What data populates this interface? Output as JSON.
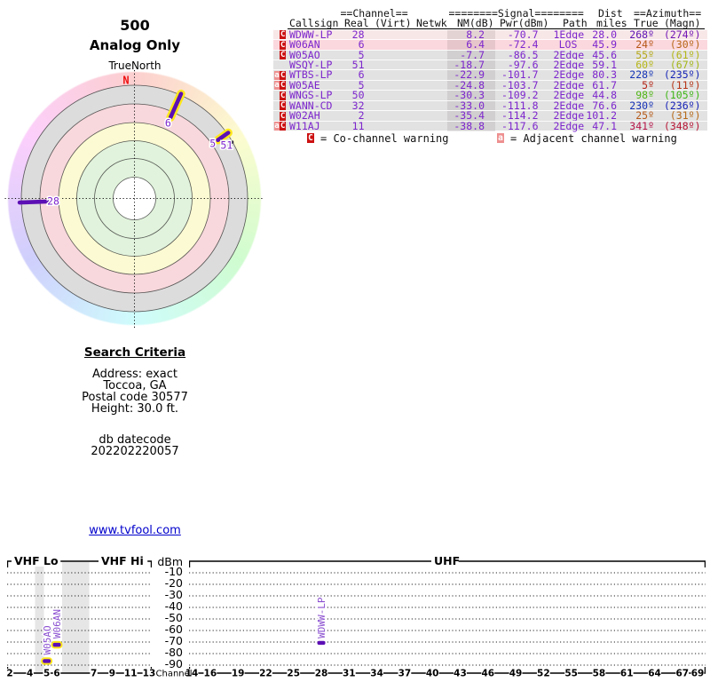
{
  "report": {
    "title": "500",
    "subtitle": "Analog Only",
    "compass_label": "TrueNorth",
    "north_label": "N"
  },
  "colors": {
    "station_purple": "#7d26cd",
    "marker_purple": "#5c0fb4",
    "marker_halo_yellow": "#ffe81a",
    "label_purple": "#8a4fd0",
    "co_badge_red": "#cc1111",
    "adj_badge_pink": "#ee9090",
    "north_red": "#ee1111",
    "link_blue": "#0000cc",
    "row_pink_light": "#f8e7e7",
    "row_pink": "#fbd8de",
    "row_gray": "#e2e2e2",
    "ring_green": "#e1f3dc",
    "ring_yellow": "#fbfad2",
    "ring_pink": "#f8d8dc",
    "ring_gray": "#dcdcdc"
  },
  "table": {
    "header_row1": {
      "channel": "==Channel==",
      "signal": "========Signal========",
      "dist": "Dist",
      "azimuth": "==Azimuth=="
    },
    "header_row2": {
      "callsign": "Callsign",
      "real": "Real",
      "virt": "(Virt)",
      "netwk": "Netwk",
      "nm": "NM(dB)",
      "pwr": "Pwr(dBm)",
      "path": "Path",
      "miles": "miles",
      "true": "True",
      "magn": "(Magn)"
    },
    "rows": [
      {
        "warn_adj": false,
        "warn_co": true,
        "callsign": "WDWW-LP",
        "real": "28",
        "virt": "",
        "netwk": "",
        "nm": "8.2",
        "pwr": "-70.7",
        "path": "1Edge",
        "miles": "28.0",
        "true_az": 268,
        "magn_az": 274,
        "shade": "pink_light"
      },
      {
        "warn_adj": false,
        "warn_co": true,
        "callsign": "W06AN",
        "real": "6",
        "virt": "",
        "netwk": "",
        "nm": "6.4",
        "pwr": "-72.4",
        "path": "LOS",
        "miles": "45.9",
        "true_az": 24,
        "magn_az": 30,
        "shade": "pink"
      },
      {
        "warn_adj": false,
        "warn_co": true,
        "callsign": "W05AO",
        "real": "5",
        "virt": "",
        "netwk": "",
        "nm": "-7.7",
        "pwr": "-86.5",
        "path": "2Edge",
        "miles": "45.6",
        "true_az": 55,
        "magn_az": 61,
        "shade": "gray"
      },
      {
        "warn_adj": false,
        "warn_co": false,
        "callsign": "WSQY-LP",
        "real": "51",
        "virt": "",
        "netwk": "",
        "nm": "-18.7",
        "pwr": "-97.6",
        "path": "2Edge",
        "miles": "59.1",
        "true_az": 60,
        "magn_az": 67,
        "shade": "gray"
      },
      {
        "warn_adj": true,
        "warn_co": true,
        "callsign": "WTBS-LP",
        "real": "6",
        "virt": "",
        "netwk": "",
        "nm": "-22.9",
        "pwr": "-101.7",
        "path": "2Edge",
        "miles": "80.3",
        "true_az": 228,
        "magn_az": 235,
        "shade": "gray"
      },
      {
        "warn_adj": true,
        "warn_co": true,
        "callsign": "W05AE",
        "real": "5",
        "virt": "",
        "netwk": "",
        "nm": "-24.8",
        "pwr": "-103.7",
        "path": "2Edge",
        "miles": "61.7",
        "true_az": 5,
        "magn_az": 11,
        "shade": "gray"
      },
      {
        "warn_adj": false,
        "warn_co": true,
        "callsign": "WNGS-LP",
        "real": "50",
        "virt": "",
        "netwk": "",
        "nm": "-30.3",
        "pwr": "-109.2",
        "path": "2Edge",
        "miles": "44.8",
        "true_az": 98,
        "magn_az": 105,
        "shade": "gray"
      },
      {
        "warn_adj": false,
        "warn_co": true,
        "callsign": "WANN-CD",
        "real": "32",
        "virt": "",
        "netwk": "",
        "nm": "-33.0",
        "pwr": "-111.8",
        "path": "2Edge",
        "miles": "76.6",
        "true_az": 230,
        "magn_az": 236,
        "shade": "gray"
      },
      {
        "warn_adj": false,
        "warn_co": true,
        "callsign": "W02AH",
        "real": "2",
        "virt": "",
        "netwk": "",
        "nm": "-35.4",
        "pwr": "-114.2",
        "path": "2Edge",
        "miles": "101.2",
        "true_az": 25,
        "magn_az": 31,
        "shade": "gray"
      },
      {
        "warn_adj": true,
        "warn_co": true,
        "callsign": "W11AJ",
        "real": "11",
        "virt": "",
        "netwk": "",
        "nm": "-38.8",
        "pwr": "-117.6",
        "path": "2Edge",
        "miles": "47.1",
        "true_az": 341,
        "magn_az": 348,
        "shade": "gray"
      }
    ],
    "legend": {
      "co_symbol": "C",
      "co_text": "= Co-channel warning",
      "adj_symbol": "a",
      "adj_text": "= Adjacent channel warning"
    }
  },
  "search_criteria": {
    "heading": "Search Criteria",
    "lines": [
      "Address: exact",
      "Toccoa, GA",
      "Postal code 30577",
      "Height: 30.0 ft."
    ],
    "db_lines": [
      "db datecode",
      "202202220057"
    ]
  },
  "link_text": "www.tvfool.com",
  "chart_data": [
    {
      "type": "radar",
      "title": "500 Analog Only",
      "orientation_label": "TrueNorth",
      "north": "N",
      "rings_outer_to_inner": [
        "azimuth-hue",
        "gray",
        "pink",
        "yellow",
        "green",
        "green",
        "white"
      ],
      "markers": [
        {
          "channel": "6",
          "azimuth_deg": 24,
          "r_inner": 100,
          "r_outer": 129,
          "halo": true,
          "dot": false
        },
        {
          "channel": "5",
          "azimuth_deg": 55,
          "r_inner": 114.7,
          "r_outer": 129,
          "halo": true,
          "dot": false
        },
        {
          "channel": "51",
          "azimuth_deg": 60,
          "r_inner": 126.9,
          "r_outer": 126.9,
          "halo": false,
          "dot": true
        },
        {
          "channel": "28",
          "azimuth_deg": 268,
          "r_inner": 98.5,
          "r_outer": 129.5,
          "halo": false,
          "dot": false
        }
      ]
    },
    {
      "type": "scatter",
      "title": "Signal power vs channel",
      "ylabel": "dBm",
      "xlabel": "Channel",
      "ylim": [
        0,
        -97
      ],
      "yticks": [
        -10,
        -20,
        -30,
        -40,
        -50,
        -60,
        -70,
        -80,
        -90
      ],
      "bands": [
        {
          "label": "VHF Lo",
          "ticks": [
            2,
            4,
            5,
            6
          ]
        },
        {
          "label": "VHF Hi",
          "ticks": [
            7,
            9,
            11,
            13
          ]
        },
        {
          "label": "UHF",
          "ticks": [
            14,
            16,
            19,
            22,
            25,
            28,
            31,
            34,
            37,
            40,
            43,
            46,
            49,
            52,
            55,
            58,
            61,
            64,
            67,
            69
          ]
        }
      ],
      "markers": [
        {
          "callsign": "W05AO",
          "channel": 5,
          "dbm": -86.5,
          "halo": true
        },
        {
          "callsign": "W06AN",
          "channel": 6,
          "dbm": -72.4,
          "halo": true
        },
        {
          "callsign": "WDWW-LP",
          "channel": 28,
          "dbm": -70.7,
          "halo": false
        }
      ]
    },
    {
      "type": "table",
      "title": "Station list",
      "columns": [
        "Callsign",
        "Real",
        "(Virt)",
        "Netwk",
        "NM(dB)",
        "Pwr(dBm)",
        "Path",
        "miles",
        "True",
        "(Magn)"
      ],
      "rows": [
        [
          "WDWW-LP",
          "28",
          "",
          "",
          "8.2",
          "-70.7",
          "1Edge",
          "28.0",
          "268º",
          "(274º)"
        ],
        [
          "W06AN",
          "6",
          "",
          "",
          "6.4",
          "-72.4",
          "LOS",
          "45.9",
          "24º",
          "(30º)"
        ],
        [
          "W05AO",
          "5",
          "",
          "",
          "-7.7",
          "-86.5",
          "2Edge",
          "45.6",
          "55º",
          "(61º)"
        ],
        [
          "WSQY-LP",
          "51",
          "",
          "",
          "-18.7",
          "-97.6",
          "2Edge",
          "59.1",
          "60º",
          "(67º)"
        ],
        [
          "WTBS-LP",
          "6",
          "",
          "",
          "-22.9",
          "-101.7",
          "2Edge",
          "80.3",
          "228º",
          "(235º)"
        ],
        [
          "W05AE",
          "5",
          "",
          "",
          "-24.8",
          "-103.7",
          "2Edge",
          "61.7",
          "5º",
          "(11º)"
        ],
        [
          "WNGS-LP",
          "50",
          "",
          "",
          "-30.3",
          "-109.2",
          "2Edge",
          "44.8",
          "98º",
          "(105º)"
        ],
        [
          "WANN-CD",
          "32",
          "",
          "",
          "-33.0",
          "-111.8",
          "2Edge",
          "76.6",
          "230º",
          "(236º)"
        ],
        [
          "W02AH",
          "2",
          "",
          "",
          "-35.4",
          "-114.2",
          "2Edge",
          "101.2",
          "25º",
          "(31º)"
        ],
        [
          "W11AJ",
          "11",
          "",
          "",
          "-38.8",
          "-117.6",
          "2Edge",
          "47.1",
          "341º",
          "(348º)"
        ]
      ]
    }
  ]
}
